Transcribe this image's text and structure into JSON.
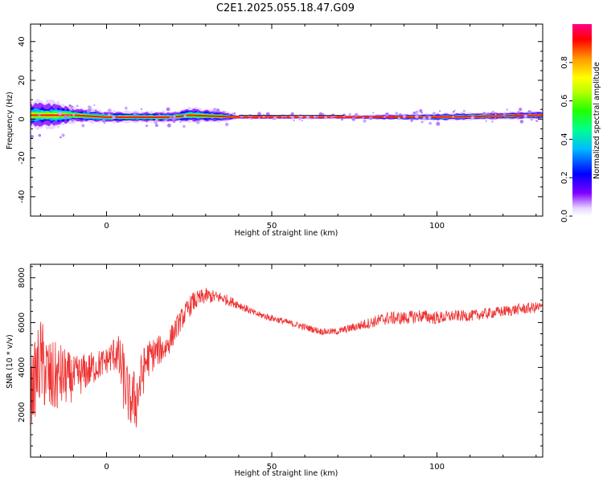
{
  "title": "C2E1.2025.055.18.47.G09",
  "chart_data": [
    {
      "type": "heatmap",
      "xlabel": "Height of straight line (km)",
      "ylabel": "Frequency (Hz)",
      "xlim": [
        -23,
        132
      ],
      "ylim": [
        -50,
        49
      ],
      "x_ticks": [
        0,
        50,
        100
      ],
      "y_ticks": [
        -40,
        -20,
        0,
        20,
        40
      ],
      "colorbar": {
        "label": "Normalized spectral amplitude",
        "range": [
          0,
          1
        ],
        "ticks": [
          0.0,
          0.2,
          0.4,
          0.6,
          0.8
        ],
        "tick_labels": [
          "0.0",
          "0.2",
          "0.4",
          "0.6",
          "0.8"
        ]
      },
      "ridge_frequency": {
        "x": [
          -23,
          -10,
          0,
          20,
          25,
          40,
          72,
          100,
          132
        ],
        "y": [
          2,
          2,
          1,
          1,
          2,
          1,
          1,
          1,
          2
        ]
      },
      "spread_hz": {
        "x": [
          -23,
          -15,
          -10,
          0,
          20,
          25,
          35,
          40,
          72,
          100,
          132
        ],
        "y": [
          7,
          7,
          4,
          3,
          3,
          4,
          3,
          1,
          1,
          2,
          2
        ]
      }
    },
    {
      "type": "line",
      "xlabel": "Height of straight line (km)",
      "ylabel": "SNR (10 * v/v)",
      "xlim": [
        -23,
        132
      ],
      "ylim": [
        0,
        8600
      ],
      "x_ticks": [
        0,
        50,
        100
      ],
      "y_ticks": [
        2000,
        4000,
        6000,
        8000
      ],
      "color": "#ee3333",
      "envelope": {
        "x": [
          -23,
          -20,
          -17,
          -14,
          -10,
          -5,
          0,
          3,
          5,
          7,
          9,
          12,
          15,
          18,
          22,
          26,
          30,
          35,
          40,
          45,
          50,
          55,
          60,
          65,
          70,
          75,
          80,
          85,
          90,
          95,
          100,
          105,
          110,
          115,
          120,
          125,
          132
        ],
        "mean": [
          2800,
          4300,
          3400,
          3600,
          3500,
          3900,
          4300,
          4700,
          3600,
          2500,
          2600,
          4300,
          4700,
          4900,
          6000,
          6900,
          7200,
          7100,
          6800,
          6400,
          6200,
          6000,
          5800,
          5600,
          5600,
          5800,
          6000,
          6200,
          6200,
          6300,
          6200,
          6300,
          6300,
          6400,
          6500,
          6600,
          6700
        ],
        "noise": [
          1500,
          2000,
          1800,
          1500,
          1000,
          800,
          600,
          900,
          1500,
          1200,
          1500,
          900,
          700,
          600,
          500,
          450,
          350,
          250,
          200,
          150,
          150,
          150,
          150,
          150,
          150,
          200,
          250,
          300,
          300,
          300,
          300,
          250,
          250,
          250,
          250,
          250,
          250
        ]
      }
    }
  ]
}
